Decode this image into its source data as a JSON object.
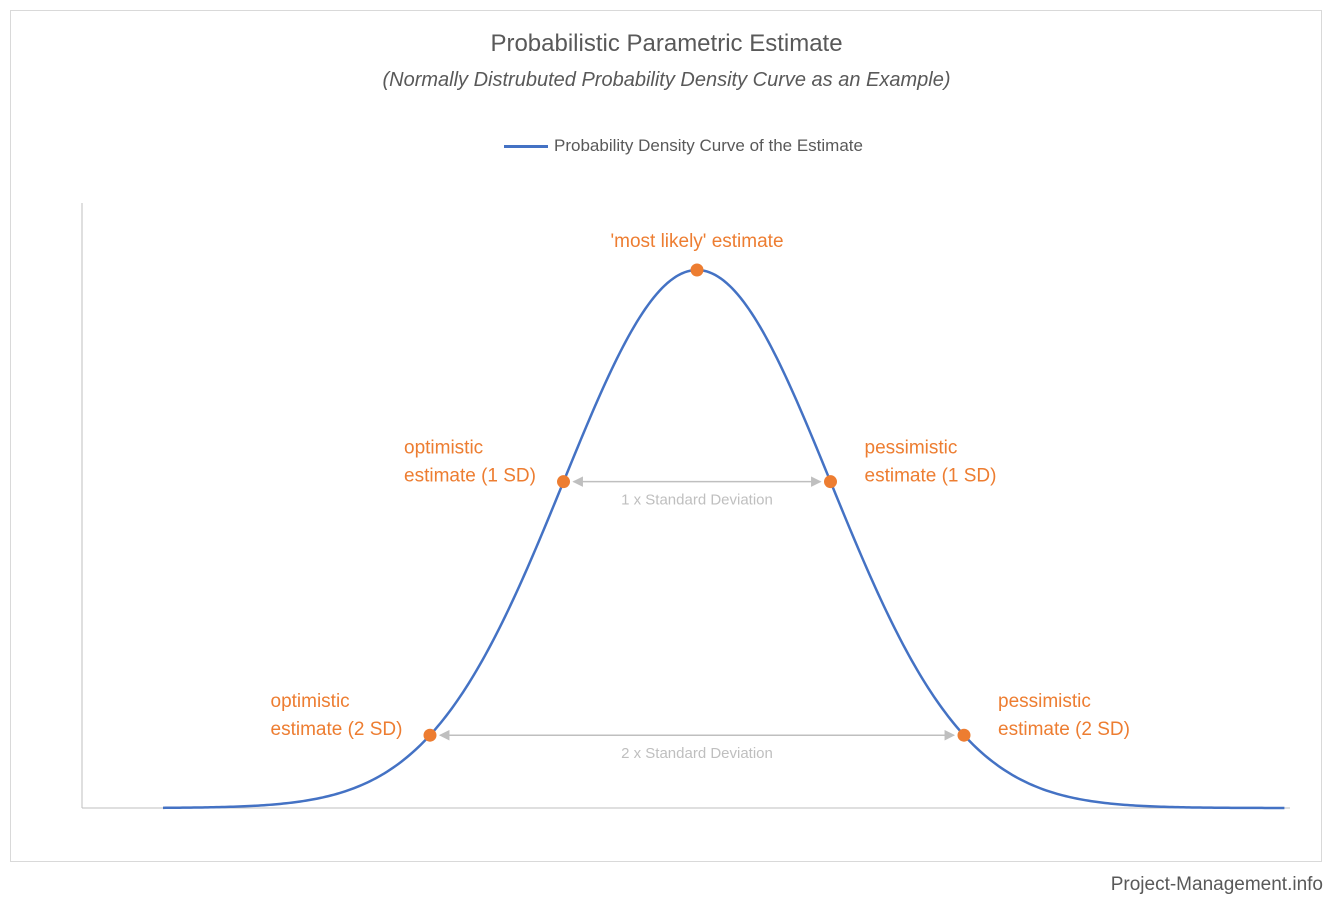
{
  "chart_data": {
    "type": "line",
    "title": "Probabilistic Parametric Estimate",
    "subtitle": "(Normally Distrubuted Probability Density Curve as an Example)",
    "xlabel": "",
    "ylabel": "",
    "legend_position": "top-center",
    "grid": false,
    "axis_tick_labels": false,
    "series": [
      {
        "name": "Probability Density Curve of the Estimate",
        "color": "#4472c4",
        "distribution": "normal",
        "mean": 0,
        "sd": 1,
        "x_range": [
          -4,
          4.4
        ]
      }
    ],
    "points": [
      {
        "x": -2,
        "label": "optimistic\nestimate (2 SD)"
      },
      {
        "x": -1,
        "label": "optimistic\nestimate (1 SD)"
      },
      {
        "x": 0,
        "label": "'most likely' estimate"
      },
      {
        "x": 1,
        "label": "pessimistic\nestimate (1 SD)"
      },
      {
        "x": 2,
        "label": "pessimistic\nestimate (2 SD)"
      }
    ],
    "point_color": "#ed7d31",
    "annotations": [
      {
        "from": -1,
        "to": 1,
        "label": "1 x Standard Deviation"
      },
      {
        "from": -2,
        "to": 2,
        "label": "2 x Standard Deviation"
      }
    ],
    "annotation_color": "#bfbfbf"
  },
  "footer": {
    "credit": "Project-Management.info"
  }
}
